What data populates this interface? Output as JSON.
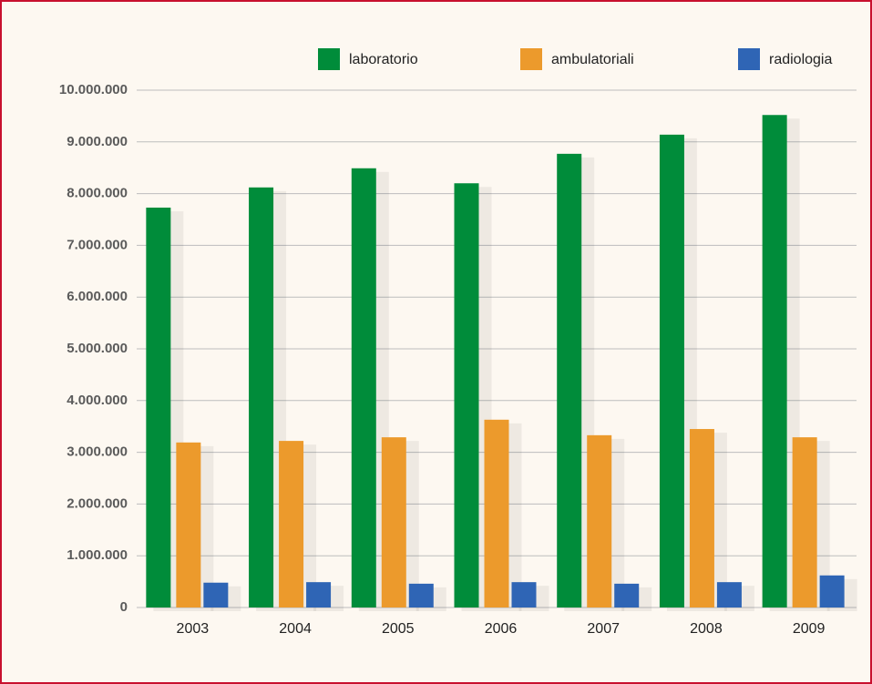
{
  "chart_data": {
    "type": "bar",
    "categories": [
      "2003",
      "2004",
      "2005",
      "2006",
      "2007",
      "2008",
      "2009"
    ],
    "series": [
      {
        "name": "laboratorio",
        "color": "#008c3a",
        "values": [
          7730000,
          8120000,
          8490000,
          8200000,
          8770000,
          9140000,
          9520000
        ]
      },
      {
        "name": "ambulatoriali",
        "color": "#ec9a2c",
        "values": [
          3190000,
          3220000,
          3290000,
          3630000,
          3330000,
          3450000,
          3290000
        ]
      },
      {
        "name": "radiologia",
        "color": "#2f65b5",
        "values": [
          480000,
          490000,
          460000,
          490000,
          460000,
          490000,
          620000
        ]
      }
    ],
    "ylim": [
      0,
      10000000
    ],
    "yticks": [
      0,
      {
        "value": 1000000,
        "label": "1.000.000"
      },
      {
        "value": 2000000,
        "label": "2.000.000"
      },
      {
        "value": 3000000,
        "label": "3.000.000"
      },
      {
        "value": 4000000,
        "label": "4.000.000"
      },
      {
        "value": 5000000,
        "label": "5.000.000"
      },
      {
        "value": 6000000,
        "label": "6.000.000"
      },
      {
        "value": 7000000,
        "label": "7.000.000"
      },
      {
        "value": 8000000,
        "label": "8.000.000"
      },
      {
        "value": 9000000,
        "label": "9.000.000"
      },
      {
        "value": 10000000,
        "label": "10.000.000"
      }
    ],
    "grid": true,
    "legend": "top"
  }
}
